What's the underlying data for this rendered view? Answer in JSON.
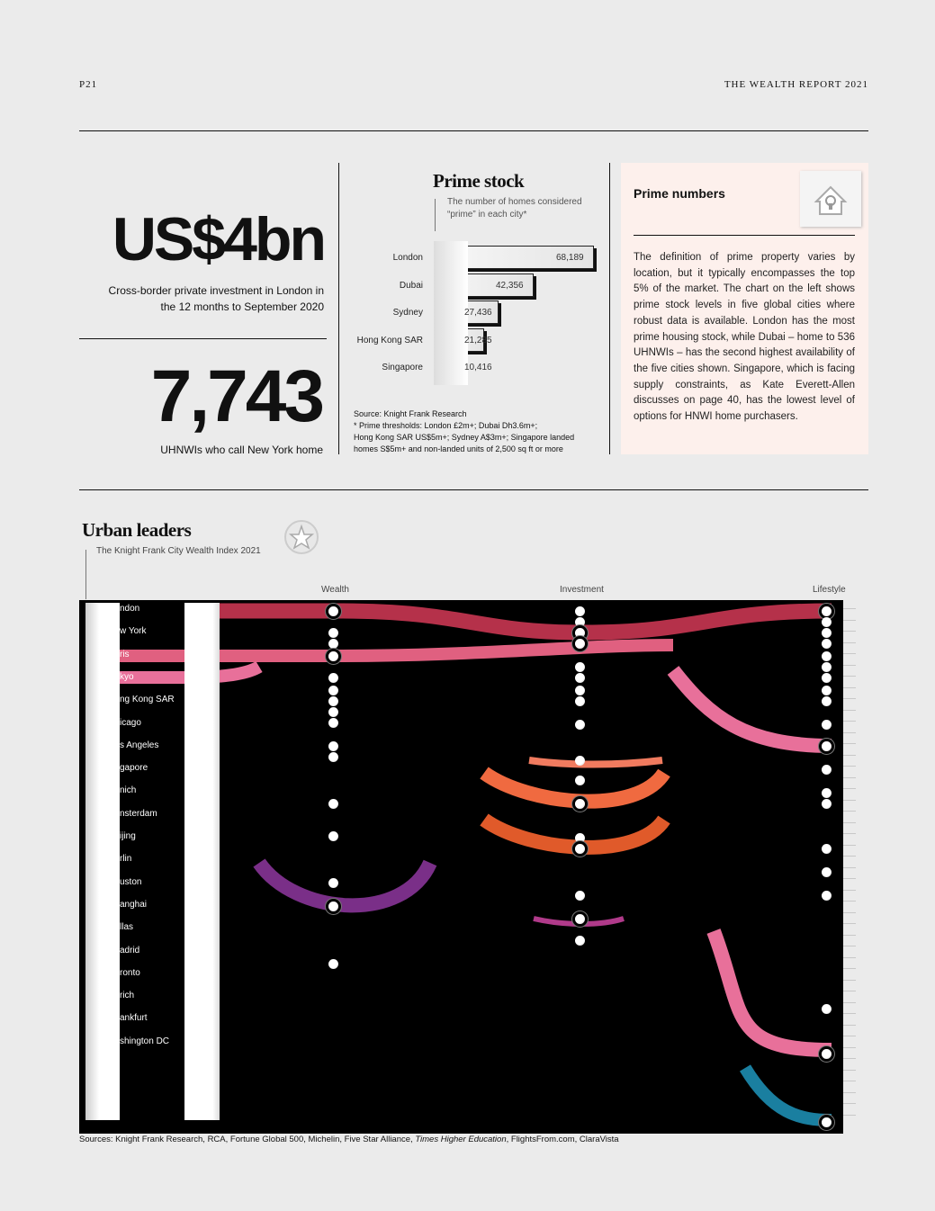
{
  "header": {
    "page_number": "P21",
    "publication": "THE WEALTH REPORT 2021"
  },
  "stat1": {
    "value": "US$4bn",
    "caption_line1": "Cross-border private investment in London in",
    "caption_line2": "the 12 months to September 2020"
  },
  "stat2": {
    "value": "7,743",
    "caption": "UHNWIs who call New York home"
  },
  "prime_stock": {
    "title": "Prime stock",
    "subtitle_line1": "The number of homes considered",
    "subtitle_line2": "“prime” in each city*",
    "source_line1": "Source: Knight Frank Research",
    "source_line2": "* Prime thresholds: London £2m+; Dubai Dh3.6m+;",
    "source_line3": "Hong Kong SAR US$5m+; Sydney A$3m+; Singapore landed",
    "source_line4": "homes S$5m+ and non-landed units of 2,500 sq ft or more"
  },
  "chart_data": {
    "type": "bar",
    "title": "Prime stock",
    "categories": [
      "London",
      "Dubai",
      "Sydney",
      "Hong Kong SAR",
      "Singapore"
    ],
    "values": [
      68189,
      42356,
      27436,
      21285,
      10416
    ],
    "value_labels": [
      "68,189",
      "42,356",
      "27,436",
      "21,285",
      "10,416"
    ],
    "orientation": "horizontal"
  },
  "prime_numbers": {
    "title": "Prime numbers",
    "icon": "house-lock-icon",
    "body": "The definition of prime property varies by location, but it typically encompasses the top 5% of the market. The chart on the left shows prime stock levels in five global cities where robust data is available. London has the most prime housing stock, while Dubai – home to 536 UHNWIs – has the second highest availability of the five cities shown. Singapore, which is facing supply constraints, as Kate Everett-Allen discusses on page 40, has the lowest level of options for HNWI home purchasers."
  },
  "urban_leaders": {
    "title": "Urban leaders",
    "subtitle": "The Knight Frank City Wealth Index 2021",
    "icon": "star-icon",
    "columns": [
      "Wealth",
      "Investment",
      "Lifestyle"
    ],
    "visible_labels": [
      "ndon",
      "w York",
      "ris",
      "kyo",
      "ng Kong SAR",
      "icago",
      "s Angeles",
      "gapore",
      "nich",
      "nsterdam",
      "ijing",
      "rlin",
      "uston",
      "anghai",
      "llas",
      "adrid",
      "ronto",
      "rich",
      "ankfurt",
      "shington DC"
    ],
    "colors": {
      "london": "#b5314a",
      "paris": "#e06080",
      "pink": "#e8709a",
      "coral": "#f07b5f",
      "orange": "#f06a40",
      "orange2": "#e05a2a",
      "purple": "#7a2f88",
      "magenta": "#b03a8a",
      "teal": "#1a7fa0"
    },
    "sources_prefix": "Sources: Knight Frank Research, RCA, Fortune Global 500, Michelin, Five Star Alliance, ",
    "sources_italic": "Times Higher Education",
    "sources_suffix": ", FlightsFrom.com, ClaraVista"
  }
}
